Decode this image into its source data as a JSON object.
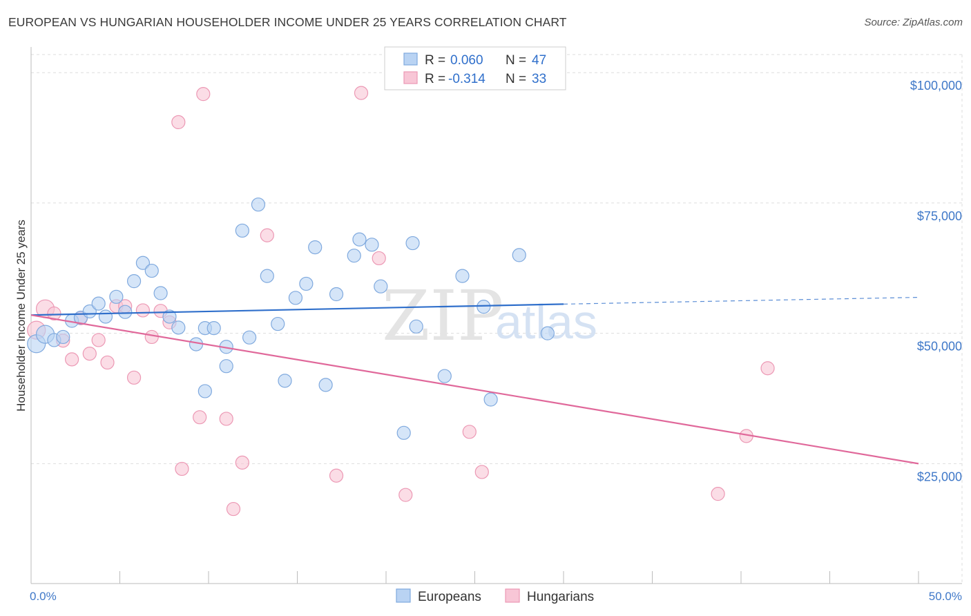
{
  "header": {
    "title": "EUROPEAN VS HUNGARIAN HOUSEHOLDER INCOME UNDER 25 YEARS CORRELATION CHART",
    "source": "Source: ZipAtlas.com"
  },
  "legend": {
    "rows": [
      {
        "r_label": "R =",
        "r_value": "0.060",
        "n_label": "N =",
        "n_value": "47"
      },
      {
        "r_label": "R =",
        "r_value": "-0.314",
        "n_label": "N =",
        "n_value": "33"
      }
    ]
  },
  "bottom_legend": {
    "europeans": "Europeans",
    "hungarians": "Hungarians"
  },
  "watermark": {
    "zip": "ZIP",
    "atlas": "atlas"
  },
  "colors": {
    "europeans_fill": "#b9d3f3",
    "europeans_stroke": "#7fa9de",
    "europeans_line": "#2f6fcb",
    "hungarians_fill": "#f8c6d6",
    "hungarians_stroke": "#ec98b4",
    "hungarians_line": "#e0689a",
    "grid": "#dddddd",
    "axis_text": "#3f78c8"
  },
  "chart_data": {
    "type": "scatter",
    "title": "EUROPEAN VS HUNGARIAN HOUSEHOLDER INCOME UNDER 25 YEARS CORRELATION CHART",
    "xlabel": "",
    "ylabel": "Householder Income Under 25 years",
    "x_tick_labels": [
      "0.0%",
      "50.0%"
    ],
    "y_tick_labels": [
      "$25,000",
      "$50,000",
      "$75,000",
      "$100,000"
    ],
    "y_ticks": [
      25000,
      50000,
      75000,
      100000
    ],
    "xlim": [
      0,
      50
    ],
    "ylim": [
      2000,
      104000
    ],
    "grid": true,
    "legend_position": "top-center",
    "series": [
      {
        "name": "Europeans",
        "R": 0.06,
        "N": 47,
        "trend": {
          "x0": 0,
          "y0": 53500,
          "x1": 30,
          "y1": 55600,
          "dashed_to_x": 50,
          "dashed_to_y": 56900
        },
        "points": [
          [
            0.3,
            48000
          ],
          [
            0.8,
            49800
          ],
          [
            1.3,
            48700
          ],
          [
            1.8,
            49300
          ],
          [
            2.3,
            52400
          ],
          [
            2.8,
            53000
          ],
          [
            3.3,
            54200
          ],
          [
            3.8,
            55700
          ],
          [
            4.2,
            53200
          ],
          [
            4.8,
            57000
          ],
          [
            5.3,
            54100
          ],
          [
            5.8,
            60000
          ],
          [
            6.3,
            63500
          ],
          [
            6.8,
            62000
          ],
          [
            7.3,
            57700
          ],
          [
            7.8,
            53200
          ],
          [
            8.3,
            51100
          ],
          [
            9.3,
            47900
          ],
          [
            9.8,
            51000
          ],
          [
            9.8,
            38900
          ],
          [
            10.3,
            51000
          ],
          [
            11.0,
            47400
          ],
          [
            11.0,
            43700
          ],
          [
            11.9,
            69700
          ],
          [
            12.3,
            49200
          ],
          [
            12.8,
            74700
          ],
          [
            13.3,
            61000
          ],
          [
            13.9,
            51800
          ],
          [
            14.3,
            40900
          ],
          [
            14.9,
            56800
          ],
          [
            15.5,
            59500
          ],
          [
            16.0,
            66500
          ],
          [
            16.6,
            40100
          ],
          [
            17.2,
            57500
          ],
          [
            18.2,
            64900
          ],
          [
            18.5,
            68000
          ],
          [
            19.2,
            67000
          ],
          [
            19.7,
            59000
          ],
          [
            21.0,
            30900
          ],
          [
            21.5,
            67300
          ],
          [
            21.7,
            51300
          ],
          [
            23.3,
            41800
          ],
          [
            24.3,
            61000
          ],
          [
            25.5,
            55100
          ],
          [
            25.9,
            37300
          ],
          [
            27.5,
            65000
          ],
          [
            29.1,
            50000
          ]
        ]
      },
      {
        "name": "Hungarians",
        "R": -0.314,
        "N": 33,
        "trend": {
          "x0": 0,
          "y0": 53500,
          "x1": 50,
          "y1": 25000
        },
        "points": [
          [
            0.3,
            50600
          ],
          [
            0.8,
            54700
          ],
          [
            1.3,
            53800
          ],
          [
            1.8,
            48600
          ],
          [
            2.3,
            45000
          ],
          [
            2.8,
            52900
          ],
          [
            3.3,
            46100
          ],
          [
            3.8,
            48700
          ],
          [
            4.3,
            44400
          ],
          [
            4.8,
            55200
          ],
          [
            5.3,
            55200
          ],
          [
            5.8,
            41500
          ],
          [
            6.3,
            54400
          ],
          [
            6.8,
            49300
          ],
          [
            7.3,
            54300
          ],
          [
            7.8,
            52100
          ],
          [
            8.3,
            90500
          ],
          [
            8.5,
            24000
          ],
          [
            9.5,
            33900
          ],
          [
            9.7,
            95900
          ],
          [
            11.0,
            33600
          ],
          [
            11.4,
            16300
          ],
          [
            11.9,
            25200
          ],
          [
            13.3,
            68800
          ],
          [
            17.2,
            22700
          ],
          [
            18.6,
            96100
          ],
          [
            19.6,
            64400
          ],
          [
            21.1,
            19000
          ],
          [
            24.7,
            31100
          ],
          [
            25.4,
            23400
          ],
          [
            38.7,
            19200
          ],
          [
            40.3,
            30300
          ],
          [
            41.5,
            43300
          ]
        ]
      }
    ]
  }
}
